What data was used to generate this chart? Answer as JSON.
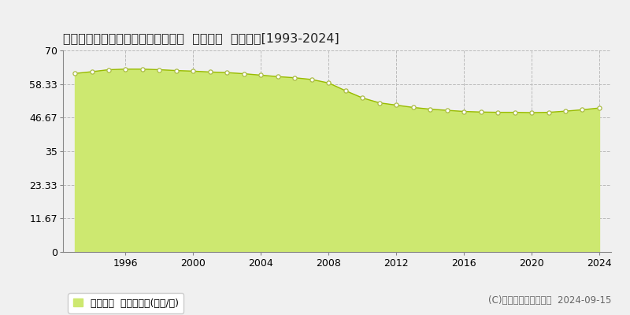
{
  "title": "鹿児島県鹿児島市武３丁目２２番８  地価公示  地価推移[1993-2024]",
  "years": [
    1993,
    1994,
    1995,
    1996,
    1997,
    1998,
    1999,
    2000,
    2001,
    2002,
    2003,
    2004,
    2005,
    2006,
    2007,
    2008,
    2009,
    2010,
    2011,
    2012,
    2013,
    2014,
    2015,
    2016,
    2017,
    2018,
    2019,
    2020,
    2021,
    2022,
    2023,
    2024
  ],
  "values": [
    62.0,
    62.6,
    63.3,
    63.5,
    63.5,
    63.3,
    63.0,
    62.8,
    62.5,
    62.3,
    61.9,
    61.4,
    60.9,
    60.5,
    59.9,
    58.7,
    56.0,
    53.5,
    51.8,
    51.0,
    50.2,
    49.6,
    49.2,
    48.8,
    48.6,
    48.5,
    48.5,
    48.4,
    48.5,
    48.9,
    49.4,
    50.0
  ],
  "fill_color": "#cde870",
  "line_color": "#99bb00",
  "marker_facecolor": "#ffffff",
  "marker_edgecolor": "#aabb44",
  "bg_color": "#f0f0f0",
  "plot_bg_color": "#f0f0f0",
  "grid_color": "#bbbbbb",
  "ylim": [
    0,
    70
  ],
  "yticks": [
    0,
    11.67,
    23.33,
    35,
    46.67,
    58.33,
    70
  ],
  "ytick_labels": [
    "0",
    "11.67",
    "23.33",
    "35",
    "46.67",
    "58.33",
    "70"
  ],
  "xtick_years": [
    1996,
    2000,
    2004,
    2008,
    2012,
    2016,
    2020,
    2024
  ],
  "legend_label": "地価公示  平均坪単価(万円/坪)",
  "legend_color": "#cde870",
  "copyright_text": "(C)土地価格ドットコム  2024-09-15",
  "title_fontsize": 11.5,
  "tick_fontsize": 9,
  "legend_fontsize": 9,
  "copyright_fontsize": 8.5
}
